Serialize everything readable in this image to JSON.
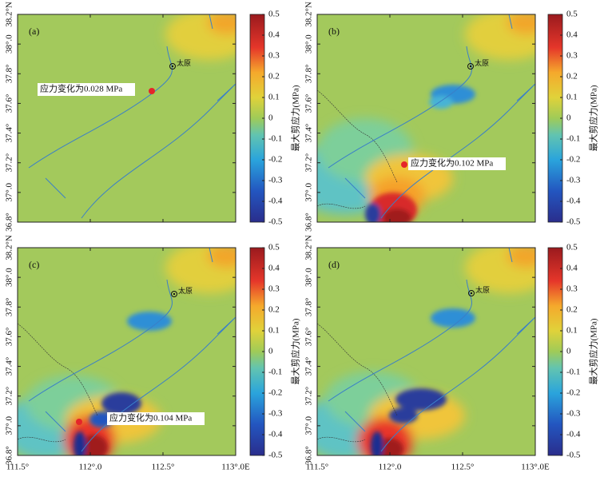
{
  "axes": {
    "xlim": [
      111.5,
      113.0
    ],
    "xticks": [
      {
        "value": 111.5,
        "label": "111.5°"
      },
      {
        "value": 112.0,
        "label": "112°.0"
      },
      {
        "value": 112.5,
        "label": "112.5°"
      },
      {
        "value": 113.0,
        "label": "113°.0E"
      }
    ],
    "ylim": [
      36.8,
      38.2
    ],
    "yticks": [
      {
        "value": 36.8,
        "label": "36.8°"
      },
      {
        "value": 37.0,
        "label": "37°.0"
      },
      {
        "value": 37.2,
        "label": "37.2°"
      },
      {
        "value": 37.4,
        "label": "37.4°"
      },
      {
        "value": 37.6,
        "label": "37.6°"
      },
      {
        "value": 37.8,
        "label": "37.8°"
      },
      {
        "value": 38.0,
        "label": "38°.0"
      },
      {
        "value": 38.2,
        "label": "38.2°N"
      }
    ]
  },
  "colorbar": {
    "label": "最大剪应力(MPa)",
    "lim": [
      -0.5,
      0.5
    ],
    "ticks": [
      0.5,
      0.4,
      0.3,
      0.2,
      0.1,
      0,
      -0.1,
      -0.2,
      -0.3,
      -0.4,
      -0.5
    ]
  },
  "panels": [
    {
      "label": "(a)",
      "annotation": "应力变化为0.028 MPa",
      "city": "太原"
    },
    {
      "label": "(b)",
      "annotation": "应力变化为0.102 MPa",
      "city": "太原"
    },
    {
      "label": "(c)",
      "annotation": "应力变化为0.104 MPa",
      "city": "太原"
    },
    {
      "label": "(d)",
      "city": "太原"
    }
  ]
}
